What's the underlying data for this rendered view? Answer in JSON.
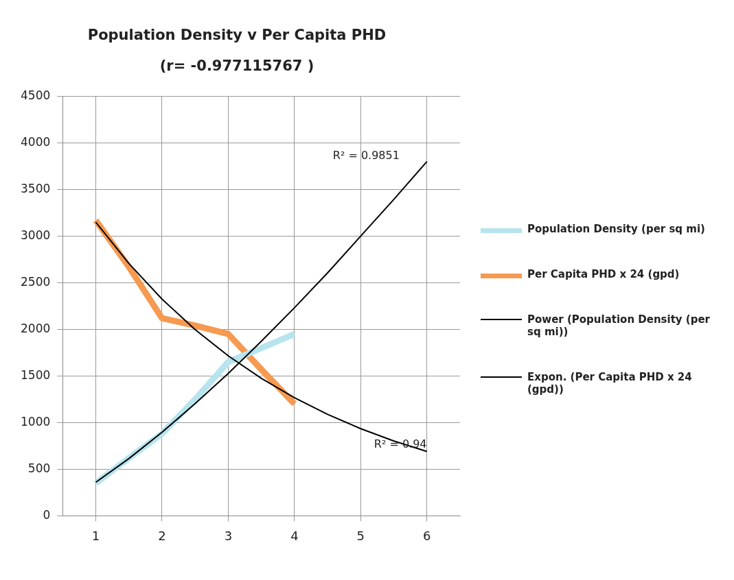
{
  "chart_data": {
    "type": "line",
    "title": "Population Density v Per Capita PHD",
    "subtitle": "(r= -0.977115767 )",
    "x": [
      1,
      1.5,
      2,
      2.5,
      3,
      3.5,
      4
    ],
    "series": [
      {
        "name": "Population Density (per sq mi)",
        "color": "#b7e4ee",
        "values": [
          350,
          620,
          880,
          1250,
          1650,
          1800,
          1950
        ]
      },
      {
        "name": "Per Capita PHD x 24 (gpd)",
        "color": "#f59a50",
        "values": [
          3170,
          2670,
          2120,
          2040,
          1950,
          1570,
          1200
        ]
      },
      {
        "name": "Power (Population Density (per sq mi))",
        "color": "#000000",
        "x": [
          1,
          1.5,
          2,
          2.5,
          3,
          3.5,
          4,
          4.5,
          5,
          5.5,
          6
        ],
        "values": [
          360,
          614,
          896,
          1203,
          1527,
          1872,
          2232,
          2606,
          3000,
          3394,
          3800
        ]
      },
      {
        "name": "Expon. (Per Capita PHD x 24 (gpd))",
        "color": "#000000",
        "x": [
          1,
          1.5,
          2,
          2.5,
          3,
          3.5,
          4,
          4.5,
          5,
          5.5,
          6
        ],
        "values": [
          3150,
          2706,
          2325,
          1997,
          1716,
          1474,
          1266,
          1088,
          935,
          803,
          690
        ]
      }
    ],
    "annotations": [
      "R² = 0.9851",
      "R² = 0.94"
    ],
    "xlim": [
      0.5,
      6.5
    ],
    "xticks": [
      1,
      2,
      3,
      4,
      5,
      6
    ],
    "ylim": [
      0,
      4500
    ],
    "yticks": [
      0,
      500,
      1000,
      1500,
      2000,
      2500,
      3000,
      3500,
      4000,
      4500
    ],
    "grid": true,
    "legend": "right",
    "marker": "none",
    "line_style": "solid"
  }
}
